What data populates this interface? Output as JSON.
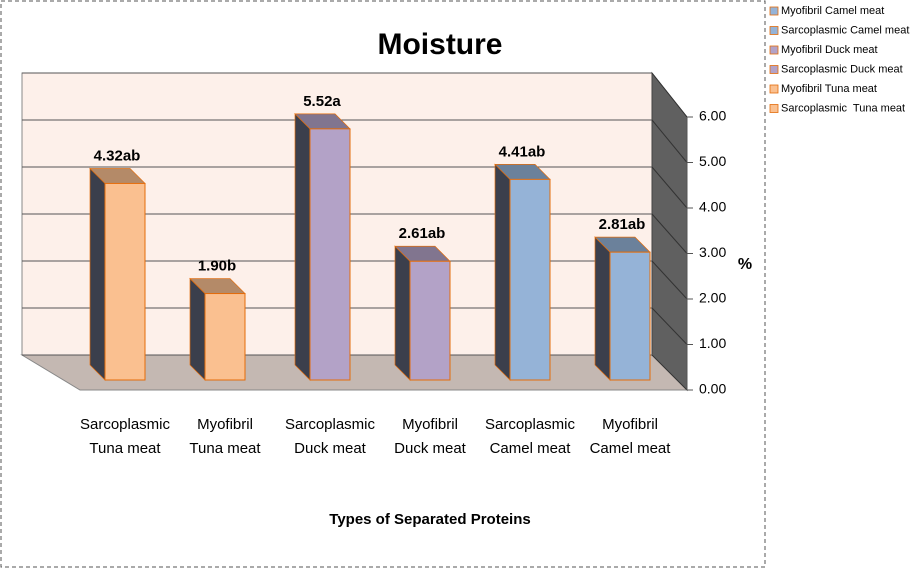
{
  "chart_data": {
    "type": "bar3d",
    "title": "Moisture",
    "x_label": "Types of Separated Proteins",
    "y_label": "%",
    "categories": [
      [
        "Sarcoplasmic",
        "Tuna meat"
      ],
      [
        "Myofibril",
        "Tuna meat"
      ],
      [
        "Sarcoplasmic",
        "Duck meat"
      ],
      [
        "Myofibril",
        "Duck meat"
      ],
      [
        "Sarcoplasmic",
        "Camel meat"
      ],
      [
        "Myofibril",
        "Camel meat"
      ]
    ],
    "values": [
      4.32,
      1.9,
      5.52,
      2.61,
      4.41,
      2.81
    ],
    "value_labels": [
      "4.32ab",
      "1.90b",
      "5.52a",
      "2.61ab",
      "4.41ab",
      "2.81ab"
    ],
    "colors": [
      "#fac090",
      "#fac090",
      "#b3a2c7",
      "#b3a2c7",
      "#95b3d7",
      "#95b3d7"
    ],
    "ylim": [
      0,
      6
    ],
    "yticks": [
      {
        "value": 0,
        "label": "0.00"
      },
      {
        "value": 1,
        "label": "1.00"
      },
      {
        "value": 2,
        "label": "2.00"
      },
      {
        "value": 3,
        "label": "3.00"
      },
      {
        "value": 4,
        "label": "4.00"
      },
      {
        "value": 5,
        "label": "5.00"
      },
      {
        "value": 6,
        "label": "6.00"
      }
    ],
    "grid": true,
    "legend_position": "right",
    "legend": [
      {
        "name": "Myofibril Camel meat",
        "color": "#95b3d7"
      },
      {
        "name": "Sarcoplasmic Camel meat",
        "color": "#95b3d7"
      },
      {
        "name": "Myofibril Duck meat",
        "color": "#b3a2c7"
      },
      {
        "name": "Sarcoplasmic Duck meat",
        "color": "#b3a2c7"
      },
      {
        "name": "Myofibril Tuna meat",
        "color": "#fac090"
      },
      {
        "name": "Sarcoplasmic  Tuna meat",
        "color": "#fac090"
      }
    ]
  }
}
